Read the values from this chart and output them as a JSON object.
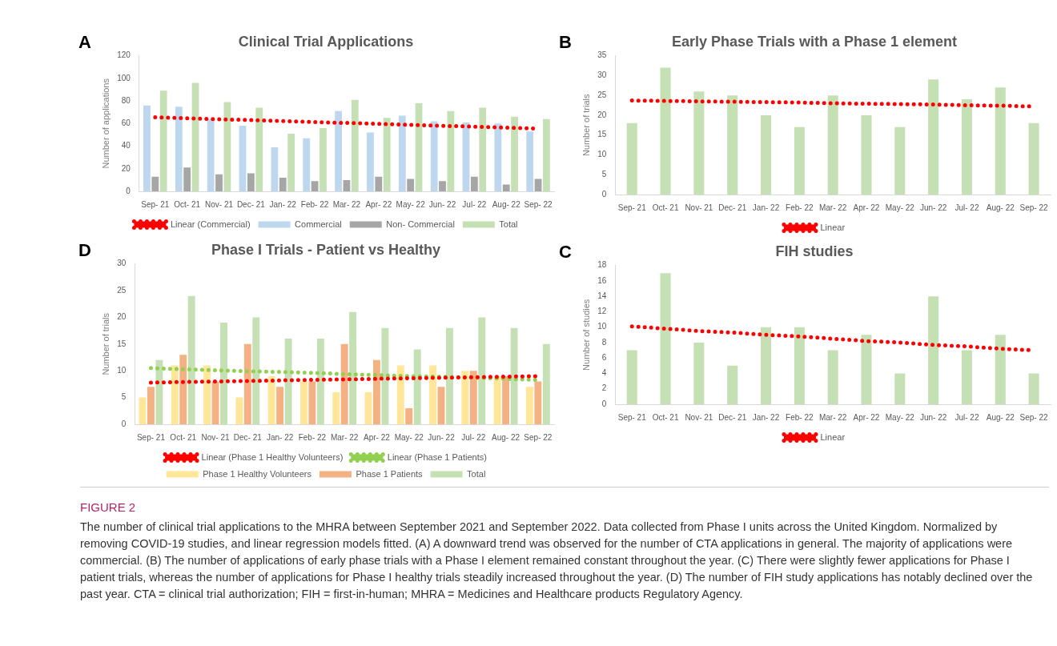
{
  "chart_data": [
    {
      "type": "bar",
      "title": "Clinical Trial Applications",
      "ylabel": "Number of applications",
      "annotations": [
        "A"
      ],
      "categories": [
        "Sep- 21",
        "Oct- 21",
        "Nov- 21",
        "Dec- 21",
        "Jan- 22",
        "Feb- 22",
        "Mar- 22",
        "Apr- 22",
        "May- 22",
        "Jun- 22",
        "Jul- 22",
        "Aug- 22",
        "Sep- 22"
      ],
      "series": [
        {
          "name": "Commercial",
          "color": "#bdd7ee",
          "values": [
            76,
            75,
            64,
            58,
            39,
            47,
            71,
            52,
            67,
            62,
            61,
            60,
            53
          ]
        },
        {
          "name": "Non- Commercial",
          "color": "#a6a6a6",
          "values": [
            13,
            21,
            15,
            16,
            12,
            9,
            10,
            13,
            11,
            9,
            13,
            6,
            11
          ]
        },
        {
          "name": "Total",
          "color": "#c5e0b4",
          "values": [
            89,
            96,
            79,
            74,
            51,
            56,
            81,
            65,
            78,
            71,
            74,
            66,
            64
          ]
        },
        {
          "name": "Linear (Commercial)",
          "color": "#ff0000",
          "type": "line",
          "line_style": "dotted",
          "values": [
            65.5,
            64.7,
            63.8,
            63.0,
            62.2,
            61.3,
            60.5,
            59.7,
            58.8,
            58.0,
            57.2,
            56.3,
            55.5
          ]
        }
      ],
      "ylim": [
        0,
        120
      ],
      "yticks": [
        0,
        20,
        40,
        60,
        80,
        100,
        120
      ],
      "grid": false,
      "legend": "bottom"
    },
    {
      "type": "bar",
      "title": "Early Phase Trials with a Phase 1 element",
      "ylabel": "Number of trials",
      "annotations": [
        "B"
      ],
      "categories": [
        "Sep- 21",
        "Oct- 21",
        "Nov- 21",
        "Dec- 21",
        "Jan- 22",
        "Feb- 22",
        "Mar- 22",
        "Apr- 22",
        "May- 22",
        "Jun- 22",
        "Jul- 22",
        "Aug- 22",
        "Sep- 22"
      ],
      "series": [
        {
          "color": "#c5e0b4",
          "values": [
            18,
            32,
            26,
            25,
            20,
            17,
            25,
            20,
            17,
            29,
            24,
            27,
            18
          ]
        },
        {
          "name": "Linear",
          "color": "#ff0000",
          "type": "line",
          "line_style": "dotted",
          "values": [
            23.7,
            23.6,
            23.5,
            23.4,
            23.3,
            23.2,
            23.0,
            22.9,
            22.8,
            22.7,
            22.5,
            22.4,
            22.2
          ]
        }
      ],
      "ylim": [
        0,
        35
      ],
      "yticks": [
        0,
        5,
        10,
        15,
        20,
        25,
        30,
        35
      ],
      "grid": false,
      "legend": "bottom"
    },
    {
      "type": "bar",
      "title": "Phase I Trials - Patient vs Healthy",
      "ylabel": "Number of trials",
      "annotations": [
        "D"
      ],
      "categories": [
        "Sep- 21",
        "Oct- 21",
        "Nov- 21",
        "Dec- 21",
        "Jan- 22",
        "Feb- 22",
        "Mar- 22",
        "Apr- 22",
        "May- 22",
        "Jun- 22",
        "Jul- 22",
        "Aug- 22",
        "Sep- 22"
      ],
      "series": [
        {
          "name": "Phase 1 Healthy Volunteers",
          "color": "#ffe699",
          "values": [
            5,
            11,
            11,
            5,
            9,
            8,
            6,
            6,
            11,
            11,
            10,
            9,
            7
          ]
        },
        {
          "name": "Phase 1 Patients",
          "color": "#f4b183",
          "values": [
            7,
            13,
            8,
            15,
            7,
            8,
            15,
            12,
            3,
            7,
            10,
            9,
            8
          ]
        },
        {
          "name": "Total",
          "color": "#c5e0b4",
          "values": [
            12,
            24,
            19,
            20,
            16,
            16,
            21,
            18,
            14,
            18,
            20,
            18,
            15
          ]
        },
        {
          "name": "Linear (Phase 1 Healthy Volunteers)",
          "color": "#ff0000",
          "type": "line",
          "line_style": "dotted",
          "values": [
            7.8,
            7.9,
            8.0,
            8.1,
            8.2,
            8.3,
            8.4,
            8.5,
            8.6,
            8.7,
            8.8,
            8.9,
            9.0
          ]
        },
        {
          "name": "Linear (Phase 1 Patients)",
          "color": "#92d050",
          "type": "line",
          "line_style": "dotted",
          "values": [
            10.5,
            10.3,
            10.1,
            9.9,
            9.8,
            9.6,
            9.4,
            9.2,
            9.0,
            8.9,
            8.7,
            8.5,
            8.3
          ]
        }
      ],
      "ylim": [
        0,
        30
      ],
      "yticks": [
        0,
        5,
        10,
        15,
        20,
        25,
        30
      ],
      "grid": false,
      "legend": "bottom"
    },
    {
      "type": "bar",
      "title": "FIH studies",
      "ylabel": "Number of studies",
      "annotations": [
        "C",
        "FIGURE 2",
        "The number of clinical trial applications to the MHRA between September 2021 and September 2022. Data collected from Phase I units across the United Kingdom. Normalized by removing COVID-19 studies, and linear regression models fitted. (A) A downward trend was observed for the number of CTA applications in general. The majority of applications were commercial. (B) The number of applications of early phase trials with a Phase I element remained constant throughout the year. (C) There were slightly fewer applications for Phase I patient trials, whereas the number of applications for Phase I healthy trials steadily increased throughout the year. (D) The number of FIH study applications has notably declined over the past year. CTA = clinical trial authorization; FIH = first-in-human; MHRA = Medicines and Healthcare products Regulatory Agency."
      ],
      "categories": [
        "Sep- 21",
        "Oct- 21",
        "Nov- 21",
        "Dec- 21",
        "Jan- 22",
        "Feb- 22",
        "Mar- 22",
        "Apr- 22",
        "May- 22",
        "Jun- 22",
        "Jul- 22",
        "Aug- 22",
        "Sep- 22"
      ],
      "series": [
        {
          "color": "#c5e0b4",
          "values": [
            7,
            17,
            8,
            5,
            10,
            10,
            7,
            9,
            4,
            14,
            7,
            9,
            4
          ]
        },
        {
          "name": "Linear",
          "color": "#ff0000",
          "type": "line",
          "line_style": "dotted",
          "values": [
            10.1,
            9.8,
            9.5,
            9.3,
            9.0,
            8.8,
            8.5,
            8.2,
            8.0,
            7.7,
            7.5,
            7.2,
            7.0
          ]
        }
      ],
      "ylim": [
        0,
        18
      ],
      "yticks": [
        0,
        2,
        4,
        6,
        8,
        10,
        12,
        14,
        16,
        18
      ],
      "grid": false,
      "legend": "bottom"
    }
  ]
}
